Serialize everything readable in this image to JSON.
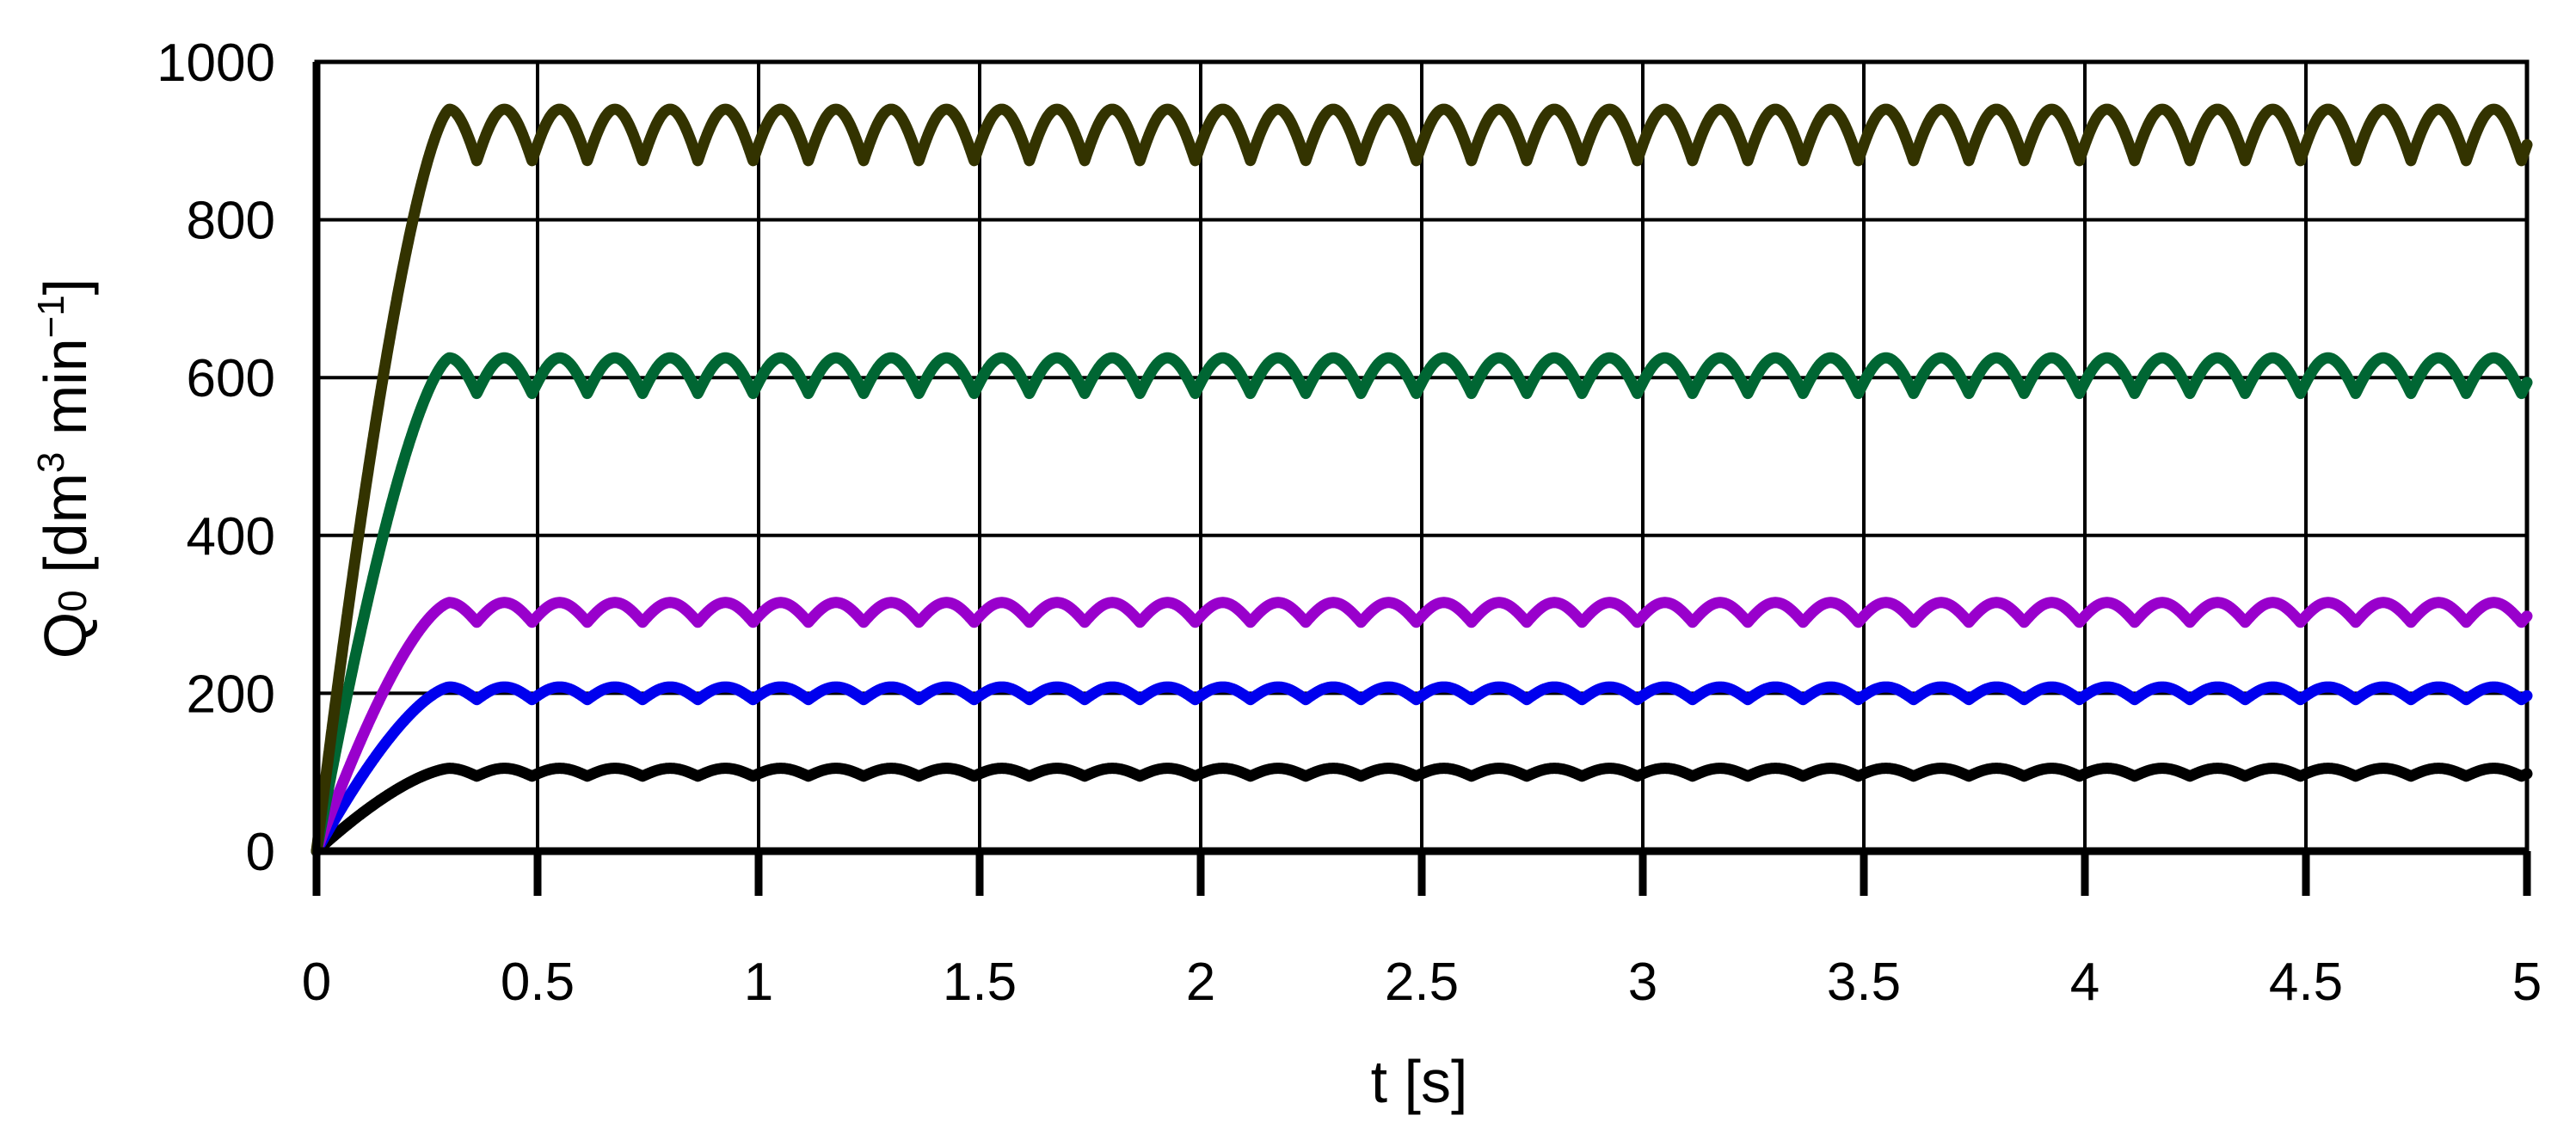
{
  "chart_data": {
    "type": "line",
    "xlabel": "t [s]",
    "ylabel": {
      "main": "Q",
      "sub": "0",
      "bracket_open": " [dm",
      "sup1": "3",
      "mid": " min",
      "sup2": "−1",
      "bracket_close": "]"
    },
    "xlim": [
      0,
      5
    ],
    "ylim": [
      0,
      1000
    ],
    "xticks": [
      0,
      0.5,
      1,
      1.5,
      2,
      2.5,
      3,
      3.5,
      4,
      4.5,
      5
    ],
    "xtick_labels": [
      "0",
      "0.5",
      "1",
      "1.5",
      "2",
      "2.5",
      "3",
      "3.5",
      "4",
      "4.5",
      "5"
    ],
    "yticks": [
      0,
      200,
      400,
      600,
      800,
      1000
    ],
    "ytick_labels": [
      "0",
      "200",
      "400",
      "600",
      "800",
      "1000"
    ],
    "grid": true,
    "ripple_period_s": 0.125,
    "series": [
      {
        "color": "#000000",
        "rise_time_s": 0.3,
        "max": 105,
        "min": 95
      },
      {
        "color": "#0000ee",
        "rise_time_s": 0.3,
        "max": 208,
        "min": 192
      },
      {
        "color": "#9900cc",
        "rise_time_s": 0.3,
        "max": 315,
        "min": 290
      },
      {
        "color": "#006633",
        "rise_time_s": 0.3,
        "max": 625,
        "min": 580
      },
      {
        "color": "#333300",
        "rise_time_s": 0.3,
        "max": 940,
        "min": 875
      }
    ]
  }
}
